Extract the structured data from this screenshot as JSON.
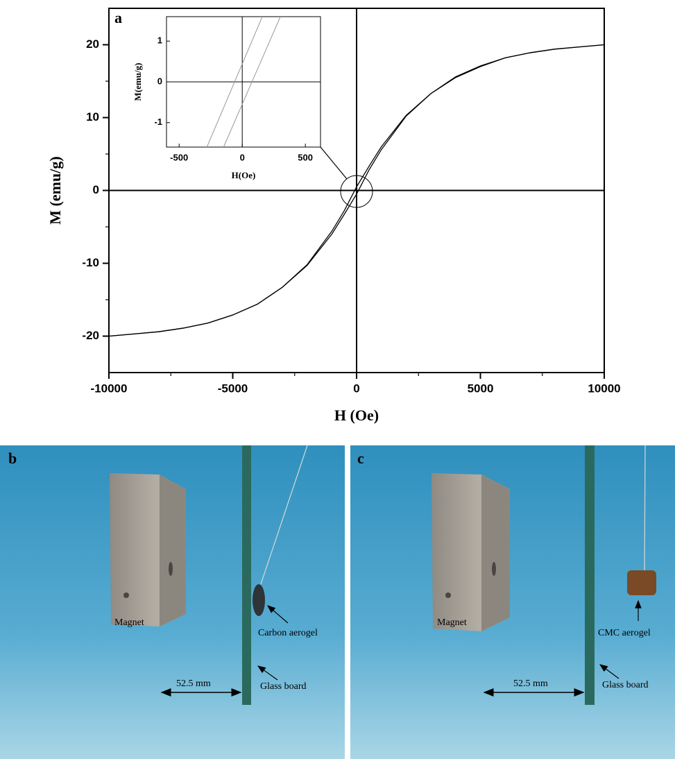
{
  "chart_data": [
    {
      "type": "line",
      "title": "a",
      "xlabel": "H (Oe)",
      "ylabel": "M (emu/g)",
      "x": [
        -10000,
        -9000,
        -8000,
        -7000,
        -6000,
        -5000,
        -4000,
        -3000,
        -2000,
        -1000,
        -500,
        0,
        500,
        1000,
        2000,
        3000,
        4000,
        5000,
        6000,
        7000,
        8000,
        9000,
        10000
      ],
      "series": [
        {
          "color": "#000000",
          "values": [
            -20,
            -19.7,
            -19.4,
            -18.9,
            -18.2,
            -17.1,
            -15.6,
            -13.3,
            -10.2,
            -5.6,
            -2.8,
            0.5,
            3.3,
            6,
            10.3,
            13.3,
            15.6,
            17.1,
            18.2,
            18.9,
            19.4,
            19.7,
            20
          ]
        },
        {
          "color": "#000000",
          "values": [
            -20,
            -19.7,
            -19.4,
            -18.9,
            -18.2,
            -17.1,
            -15.6,
            -13.3,
            -10.3,
            -6,
            -3.3,
            -0.5,
            2.8,
            5.6,
            10.2,
            13.3,
            15.5,
            17,
            18.2,
            18.9,
            19.4,
            19.7,
            20
          ]
        }
      ],
      "xlim": [
        -10000,
        10000
      ],
      "xticks": [
        -10000,
        -5000,
        0,
        5000,
        10000
      ],
      "ylim": [
        -25,
        25
      ],
      "yticks": [
        -20,
        -10,
        0,
        10,
        20
      ]
    },
    {
      "type": "line",
      "xlabel": "H(Oe)",
      "ylabel": "M(emu/g)",
      "series": [
        {
          "color": "#999999",
          "x": [
            -280,
            159
          ],
          "values": [
            -1.6,
            1.6
          ]
        },
        {
          "color": "#999999",
          "x": [
            -148,
            302
          ],
          "values": [
            -1.6,
            1.6
          ]
        }
      ],
      "xlim": [
        -600,
        620
      ],
      "xticks": [
        -500,
        0,
        500
      ],
      "ylim": [
        -1.6,
        1.6
      ],
      "yticks": [
        -1,
        0,
        1
      ]
    }
  ],
  "photos": [
    {
      "label": "b",
      "magnet": "Magnet",
      "object": "Carbon aerogel",
      "board": "Glass board",
      "distance": "52.5 mm"
    },
    {
      "label": "c",
      "magnet": "Magnet",
      "object": "CMC aerogel",
      "board": "Glass board",
      "distance": "52.5 mm"
    }
  ]
}
